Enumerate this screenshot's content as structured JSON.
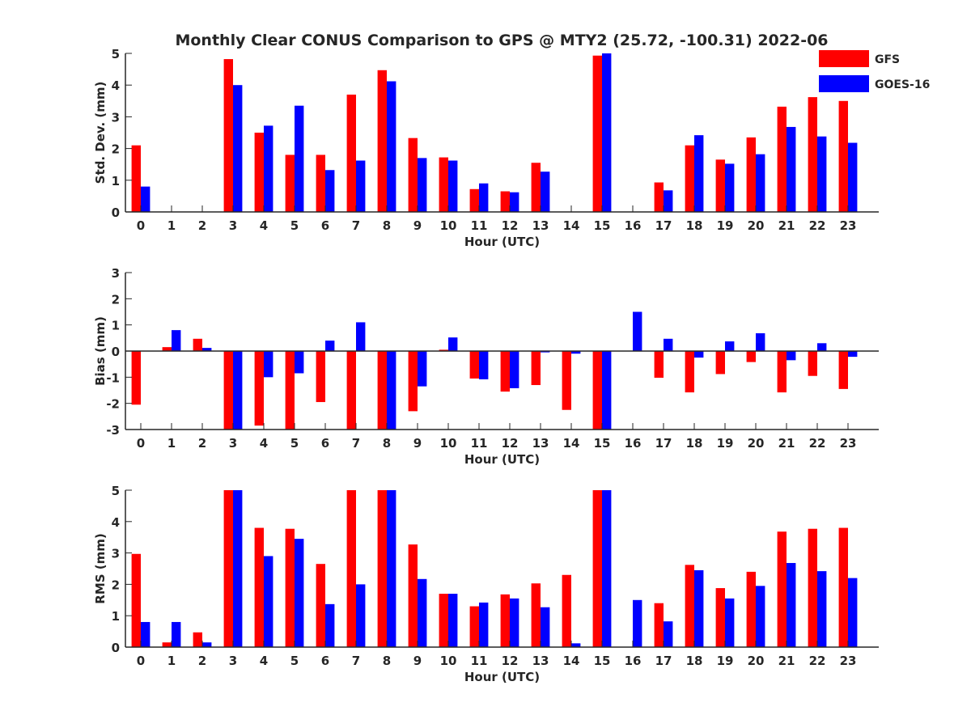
{
  "figure": {
    "title": "Monthly Clear CONUS Comparison to GPS @ MTY2 (25.72, -100.31) 2022-06"
  },
  "legend": {
    "placement": "top-right",
    "entries": [
      {
        "label": "GFS",
        "color": "#ff0000"
      },
      {
        "label": "GOES-16",
        "color": "#0000ff"
      }
    ]
  },
  "chart_data": [
    {
      "type": "bar",
      "ylabel": "Std. Dev. (mm)",
      "xlabel": "Hour (UTC)",
      "ylim": [
        0,
        5
      ],
      "yticks": [
        0,
        1,
        2,
        3,
        4,
        5
      ],
      "categories": [
        "0",
        "1",
        "2",
        "3",
        "4",
        "5",
        "6",
        "7",
        "8",
        "9",
        "10",
        "11",
        "12",
        "13",
        "14",
        "15",
        "16",
        "17",
        "18",
        "19",
        "20",
        "21",
        "22",
        "23"
      ],
      "series": [
        {
          "name": "GFS",
          "color": "#ff0000",
          "values": [
            2.1,
            0,
            0,
            4.82,
            2.5,
            1.8,
            1.8,
            3.7,
            4.47,
            2.33,
            1.72,
            0.72,
            0.65,
            1.55,
            0,
            4.93,
            0,
            0.93,
            2.1,
            1.65,
            2.35,
            3.32,
            3.62,
            3.5
          ]
        },
        {
          "name": "GOES-16",
          "color": "#0000ff",
          "values": [
            0.8,
            0,
            0,
            4.0,
            2.72,
            3.35,
            1.32,
            1.62,
            4.12,
            1.7,
            1.62,
            0.9,
            0.62,
            1.27,
            0,
            5.0,
            0,
            0.68,
            2.42,
            1.52,
            1.82,
            2.68,
            2.38,
            2.18
          ]
        }
      ]
    },
    {
      "type": "bar",
      "ylabel": "Bias (mm)",
      "xlabel": "Hour (UTC)",
      "ylim": [
        -3,
        3
      ],
      "yticks": [
        -3,
        -2,
        -1,
        0,
        1,
        2,
        3
      ],
      "zero_line": true,
      "categories": [
        "0",
        "1",
        "2",
        "3",
        "4",
        "5",
        "6",
        "7",
        "8",
        "9",
        "10",
        "11",
        "12",
        "13",
        "14",
        "15",
        "16",
        "17",
        "18",
        "19",
        "20",
        "21",
        "22",
        "23"
      ],
      "series": [
        {
          "name": "GFS",
          "color": "#ff0000",
          "values": [
            -2.05,
            0.15,
            0.47,
            -3.0,
            -2.85,
            -3.0,
            -1.95,
            -3.0,
            -3.0,
            -2.3,
            0.05,
            -1.05,
            -1.55,
            -1.3,
            -2.25,
            -3.0,
            0,
            -1.02,
            -1.58,
            -0.88,
            -0.42,
            -1.58,
            -0.95,
            -1.45
          ]
        },
        {
          "name": "GOES-16",
          "color": "#0000ff",
          "values": [
            0,
            0.8,
            0.12,
            -3.0,
            -1.0,
            -0.85,
            0.4,
            1.1,
            -3.0,
            -1.35,
            0.52,
            -1.08,
            -1.42,
            -0.05,
            -0.1,
            -3.0,
            1.5,
            0.47,
            -0.25,
            0.37,
            0.68,
            -0.35,
            0.3,
            -0.22
          ]
        }
      ]
    },
    {
      "type": "bar",
      "ylabel": "RMS (mm)",
      "xlabel": "Hour (UTC)",
      "ylim": [
        0,
        5
      ],
      "yticks": [
        0,
        1,
        2,
        3,
        4,
        5
      ],
      "categories": [
        "0",
        "1",
        "2",
        "3",
        "4",
        "5",
        "6",
        "7",
        "8",
        "9",
        "10",
        "11",
        "12",
        "13",
        "14",
        "15",
        "16",
        "17",
        "18",
        "19",
        "20",
        "21",
        "22",
        "23"
      ],
      "series": [
        {
          "name": "GFS",
          "color": "#ff0000",
          "values": [
            2.97,
            0.15,
            0.47,
            5.0,
            3.8,
            3.77,
            2.65,
            5.0,
            5.0,
            3.27,
            1.7,
            1.3,
            1.68,
            2.03,
            2.3,
            5.0,
            0,
            1.4,
            2.62,
            1.88,
            2.4,
            3.68,
            3.77,
            3.8
          ]
        },
        {
          "name": "GOES-16",
          "color": "#0000ff",
          "values": [
            0.8,
            0.8,
            0.15,
            5.0,
            2.9,
            3.45,
            1.37,
            2.0,
            5.0,
            2.17,
            1.7,
            1.42,
            1.55,
            1.27,
            0.12,
            5.0,
            1.5,
            0.82,
            2.45,
            1.55,
            1.95,
            2.68,
            2.42,
            2.2
          ]
        }
      ]
    }
  ]
}
